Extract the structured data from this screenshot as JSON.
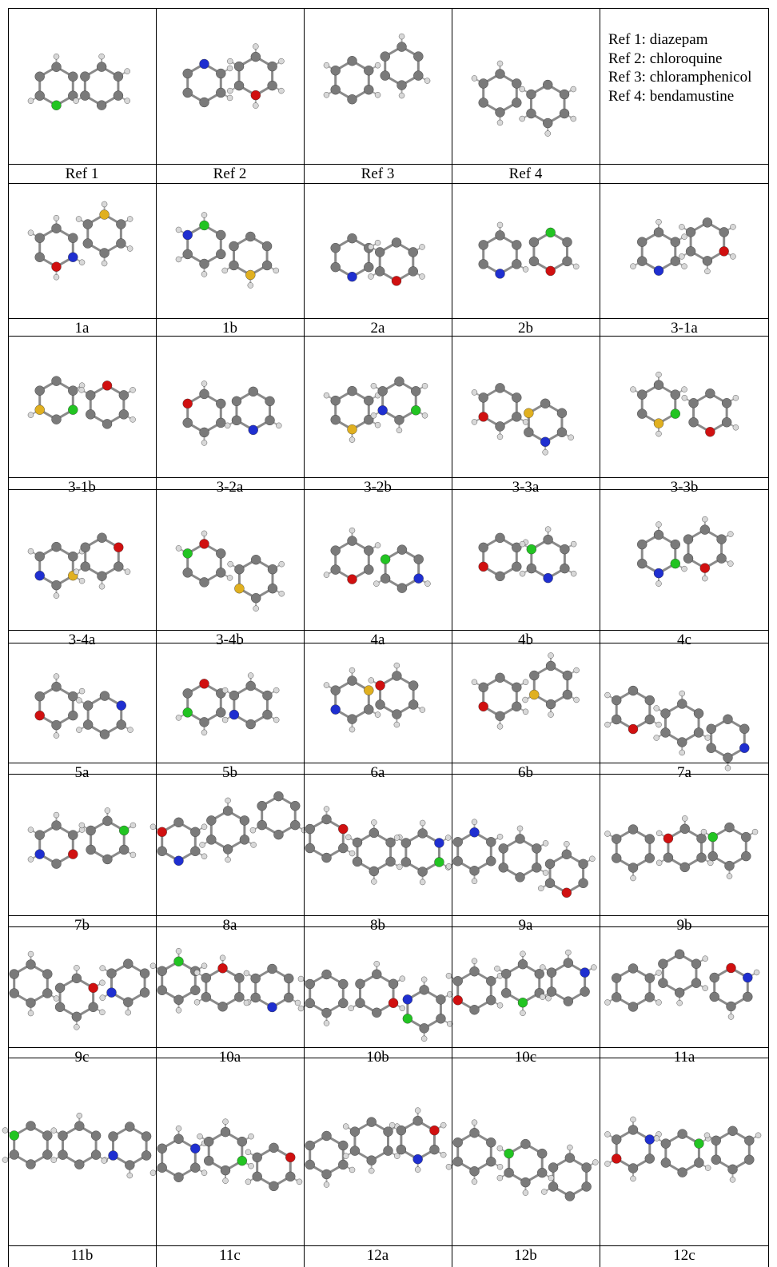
{
  "legend": {
    "lines": [
      "Ref 1: diazepam",
      "Ref 2: chloroquine",
      "Ref 3: chloramphenicol",
      "Ref 4: bendamustine"
    ]
  },
  "rows": [
    [
      "Ref 1",
      "Ref 2",
      "Ref 3",
      "Ref 4",
      ""
    ],
    [
      "1a",
      "1b",
      "2a",
      "2b",
      "3-1a"
    ],
    [
      "3-1b",
      "3-2a",
      "3-2b",
      "3-3a",
      "3-3b"
    ],
    [
      "3-4a",
      "3-4b",
      "4a",
      "4b",
      "4c"
    ],
    [
      "5a",
      "5b",
      "6a",
      "6b",
      "7a"
    ],
    [
      "7b",
      "8a",
      "8b",
      "9a",
      "9b"
    ],
    [
      "9c",
      "10a",
      "10b",
      "10c",
      "11a"
    ],
    [
      "11b",
      "11c",
      "12a",
      "12b",
      "12c"
    ]
  ],
  "atom_colors": {
    "carbon": "#7a7a7a",
    "hydrogen": "#d8d8d8",
    "nitrogen": "#1f2fd0",
    "oxygen": "#d01010",
    "chlorine": "#22c422",
    "sulfur": "#e0b020"
  },
  "highlight_atoms": [
    [
      "chlorine",
      "nitrogen|oxygen",
      "",
      "",
      ""
    ],
    [
      "nitrogen|oxygen|sulfur",
      "chlorine|sulfur|nitrogen",
      "oxygen|nitrogen",
      "chlorine|oxygen|nitrogen",
      "sulfur|nitrogen|oxygen"
    ],
    [
      "chlorine|sulfur|oxygen",
      "sulfur|nitrogen|oxygen",
      "chlorine|sulfur|nitrogen",
      "sulfur|nitrogen|oxygen",
      "chlorine|sulfur|oxygen"
    ],
    [
      "sulfur|nitrogen|oxygen",
      "chlorine|sulfur|oxygen",
      "nitrogen|oxygen|chlorine",
      "chlorine|nitrogen|oxygen",
      "chlorine|nitrogen|oxygen"
    ],
    [
      "nitrogen|oxygen",
      "chlorine|nitrogen|oxygen",
      "sulfur|nitrogen|oxygen",
      "chlorine|sulfur|oxygen",
      "nitrogen|oxygen"
    ],
    [
      "chlorine|nitrogen|oxygen",
      "nitrogen|oxygen",
      "chlorine|nitrogen|oxygen",
      "nitrogen|oxygen",
      "chlorine|nitrogen|oxygen"
    ],
    [
      "chlorine|nitrogen|oxygen",
      "chlorine|oxygen|nitrogen",
      "chlorine|oxygen|nitrogen",
      "chlorine|oxygen|nitrogen",
      "nitrogen|oxygen"
    ],
    [
      "nitrogen|oxygen|chlorine",
      "chlorine|oxygen|nitrogen",
      "oxygen|nitrogen",
      "oxygen|nitrogen|chlorine",
      "oxygen|nitrogen|chlorine"
    ]
  ]
}
